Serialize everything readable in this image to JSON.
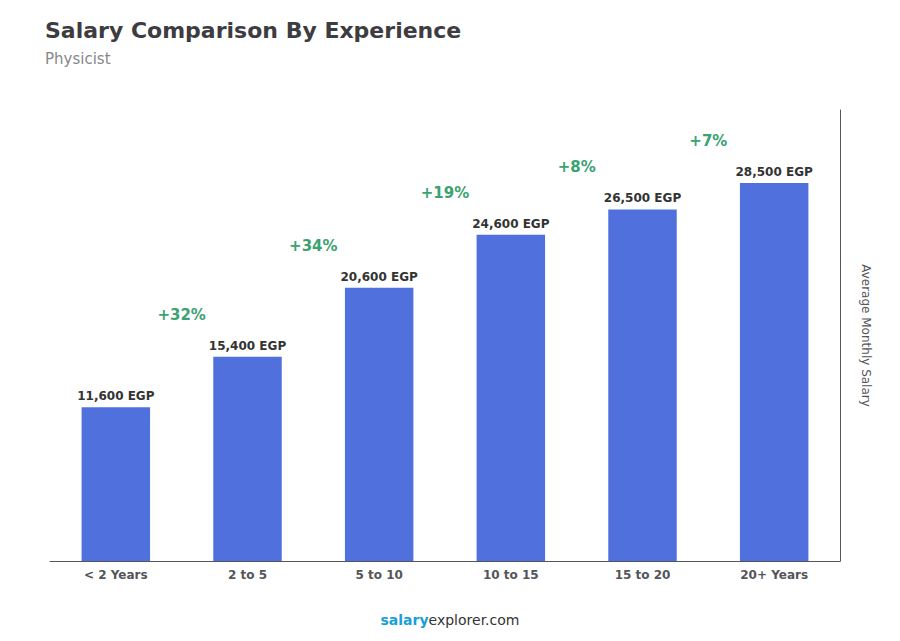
{
  "chart_data": {
    "type": "bar",
    "title": "Salary Comparison By Experience",
    "subtitle": "Physicist",
    "categories": [
      "< 2 Years",
      "2 to 5",
      "5 to 10",
      "10 to 15",
      "15 to 20",
      "20+ Years"
    ],
    "values": [
      11600,
      15400,
      20600,
      24600,
      26500,
      28500
    ],
    "value_labels": [
      "11,600 EGP",
      "15,400 EGP",
      "20,600 EGP",
      "24,600 EGP",
      "26,500 EGP",
      "28,500 EGP"
    ],
    "data_labels": true,
    "annotations": [
      "+32%",
      "+34%",
      "+19%",
      "+8%",
      "+7%"
    ],
    "ylabel": "Average Monthly Salary",
    "footer": [
      "salary",
      "explorer.com"
    ],
    "ylim": [
      0,
      34000
    ],
    "tick_labels": "x",
    "grid": false
  }
}
